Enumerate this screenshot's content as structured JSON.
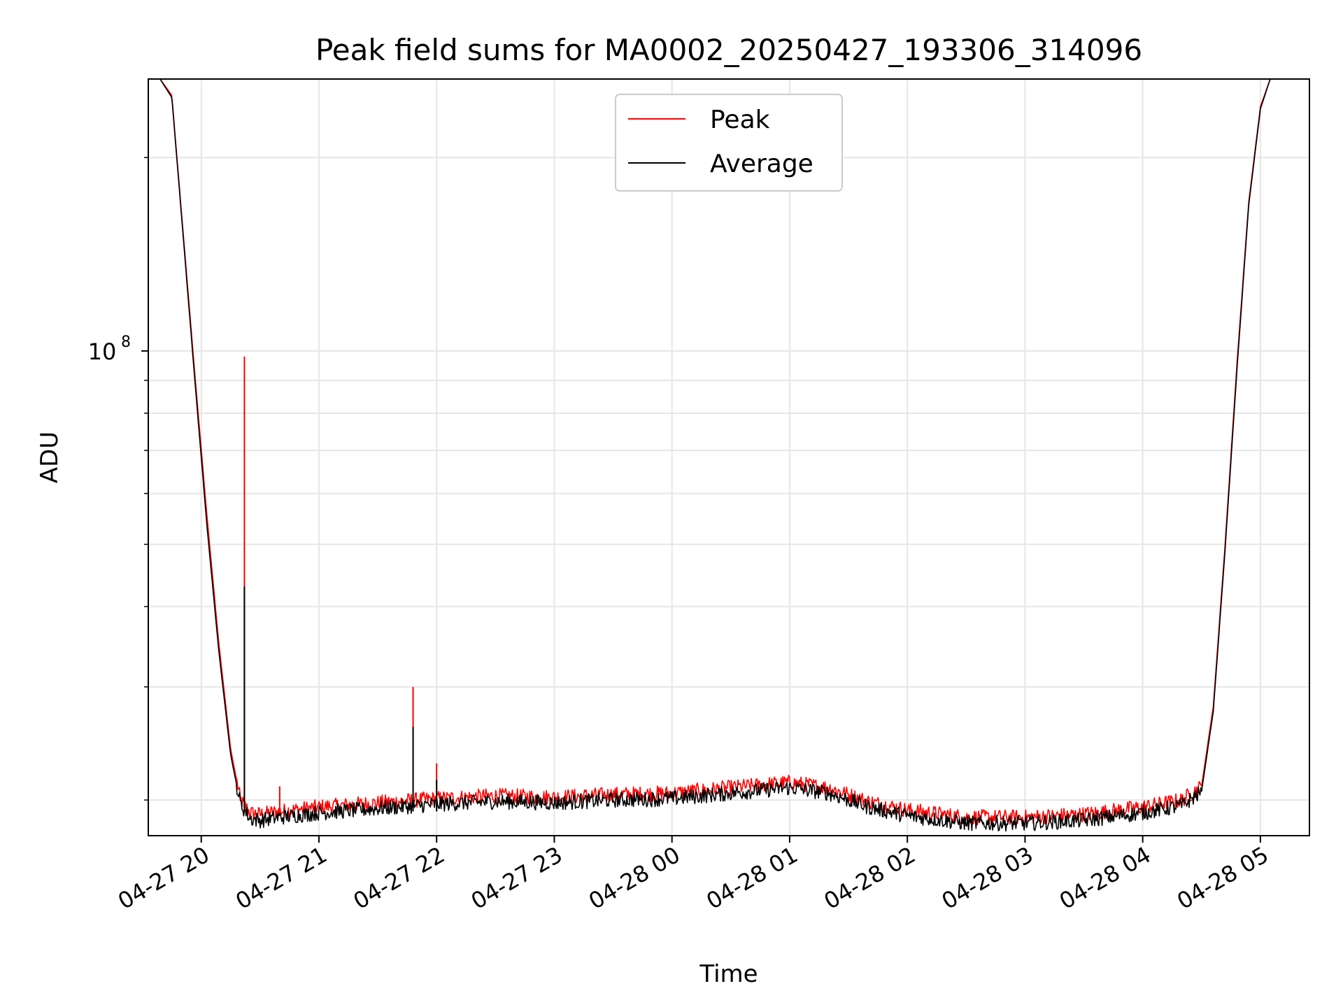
{
  "chart_data": {
    "type": "line",
    "title": "Peak field sums for MA0002_20250427_193306_314096",
    "xlabel": "Time",
    "ylabel": "ADU",
    "yscale": "log",
    "xlim": [
      "2025-04-27 19:33",
      "2025-04-28 05:25"
    ],
    "ylim": [
      17600000,
      265000000
    ],
    "grid": true,
    "legend_position": "top-center",
    "x_ticks": [
      "04-27 20",
      "04-27 21",
      "04-27 22",
      "04-27 23",
      "04-28 00",
      "04-28 01",
      "04-28 02",
      "04-28 03",
      "04-28 04",
      "04-28 05"
    ],
    "y_tick_major": {
      "value": 100000000,
      "base": "10",
      "exponent": "8"
    },
    "y_ticks_minor": [
      20000000,
      30000000,
      40000000,
      50000000,
      60000000,
      70000000,
      80000000,
      90000000,
      200000000
    ],
    "series": [
      {
        "name": "Peak",
        "color": "#ff0000",
        "x": [
          "2025-04-27 19:33",
          "2025-04-27 19:39",
          "2025-04-27 19:45",
          "2025-04-27 19:51",
          "2025-04-27 19:57",
          "2025-04-27 20:03",
          "2025-04-27 20:09",
          "2025-04-27 20:15",
          "2025-04-27 20:20",
          "2025-04-27 20:25",
          "2025-04-27 20:30",
          "2025-04-27 20:40",
          "2025-04-27 21:00",
          "2025-04-27 21:30",
          "2025-04-27 22:00",
          "2025-04-27 22:30",
          "2025-04-27 23:00",
          "2025-04-27 23:30",
          "2025-04-28 00:00",
          "2025-04-28 00:30",
          "2025-04-28 01:00",
          "2025-04-28 01:20",
          "2025-04-28 01:40",
          "2025-04-28 02:00",
          "2025-04-28 02:30",
          "2025-04-28 03:00",
          "2025-04-28 03:30",
          "2025-04-28 04:00",
          "2025-04-28 04:20",
          "2025-04-28 04:30",
          "2025-04-28 04:36",
          "2025-04-28 04:42",
          "2025-04-28 04:48",
          "2025-04-28 04:54",
          "2025-04-28 05:00",
          "2025-04-28 05:05",
          "2025-04-28 05:25"
        ],
        "values": [
          265000000,
          265000000,
          250000000,
          150000000,
          90000000,
          55000000,
          35000000,
          24000000,
          20000000,
          19100000,
          19000000,
          19200000,
          19500000,
          19800000,
          20100000,
          20300000,
          20200000,
          20400000,
          20500000,
          20900000,
          21300000,
          20900000,
          19900000,
          19300000,
          18800000,
          18800000,
          19000000,
          19500000,
          20000000,
          21000000,
          28000000,
          50000000,
          95000000,
          170000000,
          240000000,
          265000000,
          265000000
        ]
      },
      {
        "name": "Average",
        "color": "#000000",
        "x": [
          "2025-04-27 19:33",
          "2025-04-27 19:39",
          "2025-04-27 19:45",
          "2025-04-27 19:51",
          "2025-04-27 19:57",
          "2025-04-27 20:03",
          "2025-04-27 20:09",
          "2025-04-27 20:15",
          "2025-04-27 20:20",
          "2025-04-27 20:25",
          "2025-04-27 20:30",
          "2025-04-27 20:40",
          "2025-04-27 21:00",
          "2025-04-27 21:30",
          "2025-04-27 22:00",
          "2025-04-27 22:30",
          "2025-04-27 23:00",
          "2025-04-27 23:30",
          "2025-04-28 00:00",
          "2025-04-28 00:30",
          "2025-04-28 01:00",
          "2025-04-28 01:20",
          "2025-04-28 01:40",
          "2025-04-28 02:00",
          "2025-04-28 02:30",
          "2025-04-28 03:00",
          "2025-04-28 03:30",
          "2025-04-28 04:00",
          "2025-04-28 04:20",
          "2025-04-28 04:30",
          "2025-04-28 04:36",
          "2025-04-28 04:42",
          "2025-04-28 04:48",
          "2025-04-28 04:54",
          "2025-04-28 05:00",
          "2025-04-28 05:05",
          "2025-04-28 05:25"
        ],
        "values": [
          265000000,
          265000000,
          248000000,
          148000000,
          88000000,
          53000000,
          34000000,
          23500000,
          19700000,
          18700000,
          18600000,
          18800000,
          19100000,
          19400000,
          19700000,
          19900000,
          19800000,
          20000000,
          20100000,
          20500000,
          20900000,
          20500000,
          19500000,
          18900000,
          18400000,
          18400000,
          18600000,
          19100000,
          19600000,
          20600000,
          27500000,
          49000000,
          93000000,
          168000000,
          238000000,
          265000000,
          265000000
        ]
      }
    ],
    "spikes": [
      {
        "series": "Peak",
        "x": "2025-04-27 20:22",
        "value": 98000000
      },
      {
        "series": "Average",
        "x": "2025-04-27 20:22",
        "value": 43000000
      },
      {
        "series": "Peak",
        "x": "2025-04-27 20:40",
        "value": 21000000
      },
      {
        "series": "Peak",
        "x": "2025-04-27 21:48",
        "value": 30000000
      },
      {
        "series": "Average",
        "x": "2025-04-27 21:48",
        "value": 26000000
      },
      {
        "series": "Peak",
        "x": "2025-04-27 22:00",
        "value": 22800000
      },
      {
        "series": "Average",
        "x": "2025-04-27 22:00",
        "value": 21500000
      }
    ]
  }
}
